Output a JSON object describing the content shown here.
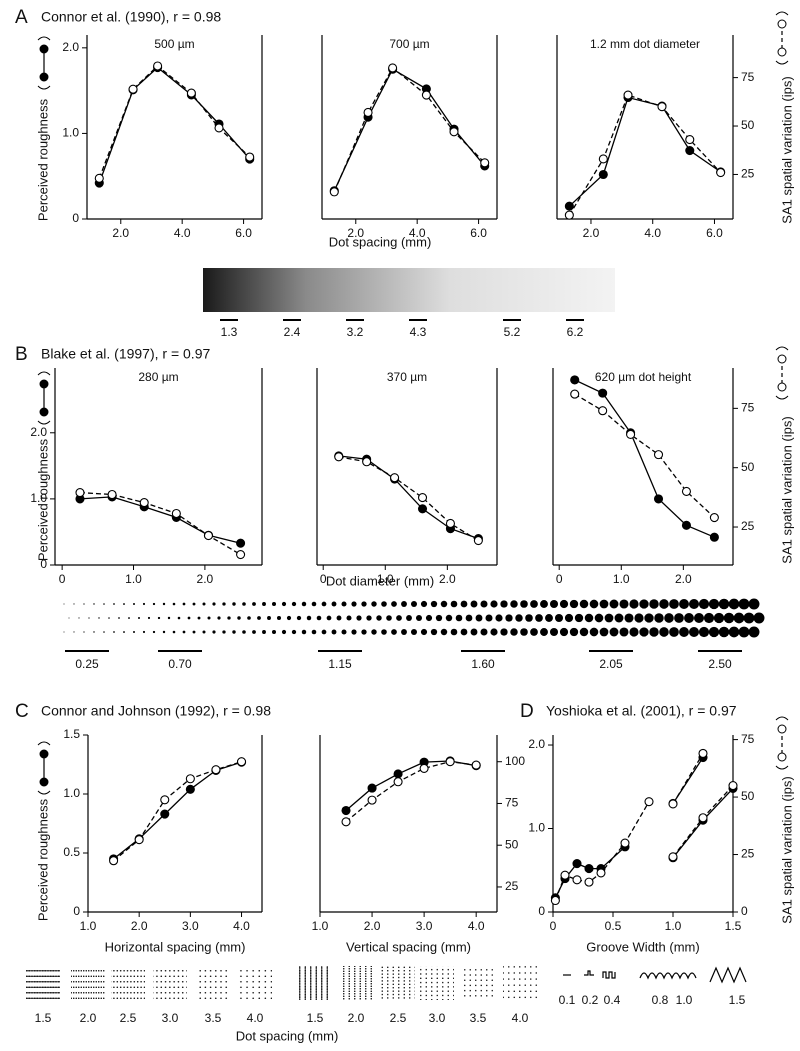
{
  "panels": [
    {
      "letter": "A",
      "heading": "Connor et al. (1990),  r = 0.98",
      "ylabel": "Perceived roughness",
      "y2label": "SA1 spatial variation (ips)",
      "xlabel": "Dot spacing (mm)",
      "strip": [
        "1.3",
        "2.4",
        "3.2",
        "4.3",
        "5.2",
        "6.2"
      ]
    },
    {
      "letter": "B",
      "heading": "Blake et al. (1997),  r = 0.97",
      "ylabel": "Perceived roughness",
      "y2label": "SA1 spatial variation (ips)",
      "xlabel": "Dot diameter (mm)",
      "strip": [
        "0.25",
        "0.70",
        "1.15",
        "1.60",
        "2.05",
        "2.50"
      ]
    },
    {
      "letter": "C",
      "heading": "Connor and Johnson (1992),  r = 0.98",
      "ylabel": "Perceived roughness",
      "strip": [
        "1.5",
        "2.0",
        "2.5",
        "3.0",
        "3.5",
        "4.0",
        "1.5",
        "2.0",
        "2.5",
        "3.0",
        "3.5",
        "4.0"
      ],
      "strip_label": "Dot spacing (mm)"
    },
    {
      "letter": "D",
      "heading": "Yoshioka et al. (2001),  r = 0.97",
      "y2label": "SA1 spatial variation (ips)",
      "strip": [
        "0.1",
        "0.2",
        "0.4",
        "0.8",
        "1.0",
        "1.5"
      ]
    }
  ],
  "chart_data": [
    {
      "type": "line",
      "title": "500 µm",
      "x": [
        1.3,
        2.4,
        3.2,
        4.3,
        5.2,
        6.2
      ],
      "xlim": [
        0.9,
        6.6
      ],
      "ylim": [
        0,
        2.15
      ],
      "y2lim": [
        2,
        97
      ],
      "xticks": [
        {
          "value": 2,
          "label": "2.0"
        },
        {
          "value": 4,
          "label": "4.0"
        },
        {
          "value": 6,
          "label": "6.0"
        }
      ],
      "yticks": [
        0,
        {
          "value": 1,
          "label": "1.0"
        },
        {
          "value": 2,
          "label": "2.0"
        }
      ],
      "series": [
        {
          "marker": "filled",
          "color": "#000000",
          "values": [
            0.42,
            1.51,
            1.77,
            1.45,
            1.11,
            0.7
          ]
        },
        {
          "marker": "open",
          "dash": true,
          "axis": "y2",
          "color": "#000000",
          "values": [
            23,
            69,
            81,
            67,
            49,
            34
          ]
        }
      ]
    },
    {
      "type": "line",
      "title": "700 µm",
      "x": [
        1.3,
        2.4,
        3.2,
        4.3,
        5.2,
        6.2
      ],
      "xlim": [
        0.9,
        6.6
      ],
      "ylim": [
        0,
        2.15
      ],
      "y2lim": [
        2,
        97
      ],
      "xticks": [
        {
          "value": 2,
          "label": "2.0"
        },
        {
          "value": 4,
          "label": "4.0"
        },
        {
          "value": 6,
          "label": "6.0"
        }
      ],
      "series": [
        {
          "marker": "filled",
          "color": "#000000",
          "values": [
            0.33,
            1.19,
            1.75,
            1.52,
            1.05,
            0.62
          ]
        },
        {
          "marker": "open",
          "dash": true,
          "axis": "y2",
          "color": "#000000",
          "values": [
            16,
            57,
            80,
            66,
            47,
            31
          ]
        }
      ]
    },
    {
      "type": "line",
      "title": "1.2 mm dot diameter",
      "x": [
        1.3,
        2.4,
        3.2,
        4.3,
        5.2,
        6.2
      ],
      "xlim": [
        0.9,
        6.6
      ],
      "ylim": [
        0,
        2.15
      ],
      "y2lim": [
        2,
        97
      ],
      "xticks": [
        {
          "value": 2,
          "label": "2.0"
        },
        {
          "value": 4,
          "label": "4.0"
        },
        {
          "value": 6,
          "label": "6.0"
        }
      ],
      "y2ticks": [
        25,
        50,
        75
      ],
      "series": [
        {
          "marker": "filled",
          "color": "#000000",
          "values": [
            0.15,
            0.52,
            1.42,
            1.32,
            0.8,
            0.55
          ]
        },
        {
          "marker": "open",
          "dash": true,
          "axis": "y2",
          "color": "#000000",
          "values": [
            4,
            33,
            66,
            60,
            43,
            26
          ]
        }
      ]
    },
    {
      "type": "line",
      "title": "280 µm",
      "x": [
        0.25,
        0.7,
        1.15,
        1.6,
        2.05,
        2.5
      ],
      "xlim": [
        -0.1,
        2.8
      ],
      "ylim": [
        0,
        2.98
      ],
      "y2lim": [
        9,
        92
      ],
      "xticks": [
        0,
        {
          "value": 1,
          "label": "1.0"
        },
        {
          "value": 2,
          "label": "2.0"
        }
      ],
      "yticks": [
        0,
        {
          "value": 1,
          "label": "1.0"
        },
        {
          "value": 2,
          "label": "2.0"
        }
      ],
      "series": [
        {
          "marker": "filled",
          "color": "#000000",
          "values": [
            1.0,
            1.03,
            0.88,
            0.72,
            0.45,
            0.33
          ]
        },
        {
          "marker": "open",
          "dash": true,
          "axis": "y2",
          "color": "#000000",
          "values": [
            39.5,
            38.7,
            35.3,
            30.7,
            21.4,
            13.4
          ]
        }
      ]
    },
    {
      "type": "line",
      "title": "370 µm",
      "x": [
        0.25,
        0.7,
        1.15,
        1.6,
        2.05,
        2.5
      ],
      "xlim": [
        -0.1,
        2.8
      ],
      "ylim": [
        0,
        2.98
      ],
      "y2lim": [
        9,
        92
      ],
      "xticks": [
        0,
        {
          "value": 1,
          "label": "1.0"
        },
        {
          "value": 2,
          "label": "2.0"
        }
      ],
      "series": [
        {
          "marker": "filled",
          "color": "#000000",
          "values": [
            1.65,
            1.6,
            1.3,
            0.85,
            0.55,
            0.4
          ]
        },
        {
          "marker": "open",
          "dash": true,
          "axis": "y2",
          "color": "#000000",
          "values": [
            54.6,
            52.5,
            45.8,
            37.4,
            26.5,
            19.3
          ]
        }
      ]
    },
    {
      "type": "line",
      "title": "620 µm dot height",
      "x": [
        0.25,
        0.7,
        1.15,
        1.6,
        2.05,
        2.5
      ],
      "xlim": [
        -0.1,
        2.8
      ],
      "ylim": [
        0,
        2.98
      ],
      "y2lim": [
        9,
        92
      ],
      "xticks": [
        0,
        {
          "value": 1,
          "label": "1.0"
        },
        {
          "value": 2,
          "label": "2.0"
        }
      ],
      "y2ticks": [
        25,
        50,
        75
      ],
      "series": [
        {
          "marker": "filled",
          "color": "#000000",
          "values": [
            2.8,
            2.6,
            2.0,
            1.0,
            0.6,
            0.42
          ]
        },
        {
          "marker": "open",
          "dash": true,
          "axis": "y2",
          "color": "#000000",
          "values": [
            81,
            74,
            64,
            55.5,
            40,
            29
          ]
        }
      ]
    },
    {
      "type": "line",
      "xlabel": "Horizontal spacing (mm)",
      "x": [
        1.5,
        2.0,
        2.5,
        3.0,
        3.5,
        4.0
      ],
      "xlim": [
        1.0,
        4.4
      ],
      "ylim": [
        0,
        1.5
      ],
      "y2lim": [
        10,
        116
      ],
      "xticks": [
        {
          "value": 1,
          "label": "1.0"
        },
        {
          "value": 2,
          "label": "2.0"
        },
        {
          "value": 3,
          "label": "3.0"
        },
        {
          "value": 4,
          "label": "4.0"
        }
      ],
      "yticks": [
        0,
        0.5,
        {
          "value": 1,
          "label": "1.0"
        },
        1.5
      ],
      "series": [
        {
          "marker": "filled",
          "color": "#000000",
          "values": [
            0.45,
            0.62,
            0.83,
            1.04,
            1.2,
            1.27
          ]
        },
        {
          "marker": "open",
          "dash": true,
          "axis": "y2",
          "color": "#000000",
          "values": [
            40.7,
            53.3,
            77.2,
            89.8,
            95.2,
            100
          ]
        }
      ]
    },
    {
      "type": "line",
      "xlabel": "Vertical spacing (mm)",
      "x": [
        1.5,
        2.0,
        2.5,
        3.0,
        3.5,
        4.0
      ],
      "xlim": [
        1.0,
        4.4
      ],
      "ylim": [
        0,
        1.5
      ],
      "y2lim": [
        10,
        116
      ],
      "xticks": [
        {
          "value": 1,
          "label": "1.0"
        },
        {
          "value": 2,
          "label": "2.0"
        },
        {
          "value": 3,
          "label": "3.0"
        },
        {
          "value": 4,
          "label": "4.0"
        }
      ],
      "y2ticks": [
        25,
        50,
        75,
        100
      ],
      "series": [
        {
          "marker": "filled",
          "color": "#000000",
          "values": [
            0.86,
            1.05,
            1.17,
            1.27,
            1.28,
            1.24
          ]
        },
        {
          "marker": "open",
          "dash": true,
          "axis": "y2",
          "color": "#000000",
          "values": [
            64,
            77,
            88,
            96,
            100,
            98
          ]
        }
      ]
    },
    {
      "type": "line",
      "xlabel": "Groove Width (mm)",
      "xlim": [
        0,
        1.5
      ],
      "ylim": [
        0,
        2.12
      ],
      "y2lim": [
        0,
        77
      ],
      "xticks": [
        0,
        0.5,
        {
          "value": 1,
          "label": "1.0"
        },
        1.5
      ],
      "yticks": [
        0,
        {
          "value": 1,
          "label": "1.0"
        },
        {
          "value": 2,
          "label": "2.0"
        }
      ],
      "y2ticks": [
        0,
        25,
        50,
        75
      ],
      "series": [
        {
          "marker": "filled",
          "color": "#000000",
          "x": [
            0.02,
            0.1,
            0.2,
            0.3,
            0.4,
            0.6
          ],
          "values": [
            0.17,
            0.4,
            0.58,
            0.52,
            0.52,
            0.78
          ]
        },
        {
          "marker": "open",
          "dash": true,
          "axis": "y2",
          "color": "#000000",
          "x": [
            0.02,
            0.1,
            0.2,
            0.3,
            0.4,
            0.6,
            0.8
          ],
          "values": [
            5,
            16,
            14,
            13,
            17,
            30,
            48
          ]
        },
        {
          "marker": "filled",
          "color": "#000000",
          "x": [
            1.0,
            1.25
          ],
          "values": [
            1.3,
            1.85
          ]
        },
        {
          "marker": "open",
          "dash": true,
          "axis": "y2",
          "color": "#000000",
          "x": [
            1.0,
            1.25
          ],
          "values": [
            47,
            69
          ]
        },
        {
          "marker": "filled",
          "color": "#000000",
          "x": [
            1.0,
            1.25,
            1.5
          ],
          "values": [
            0.65,
            1.1,
            1.48
          ]
        },
        {
          "marker": "open",
          "dash": true,
          "axis": "y2",
          "color": "#000000",
          "x": [
            1.0,
            1.25,
            1.5
          ],
          "values": [
            24,
            41,
            55
          ]
        }
      ]
    }
  ]
}
